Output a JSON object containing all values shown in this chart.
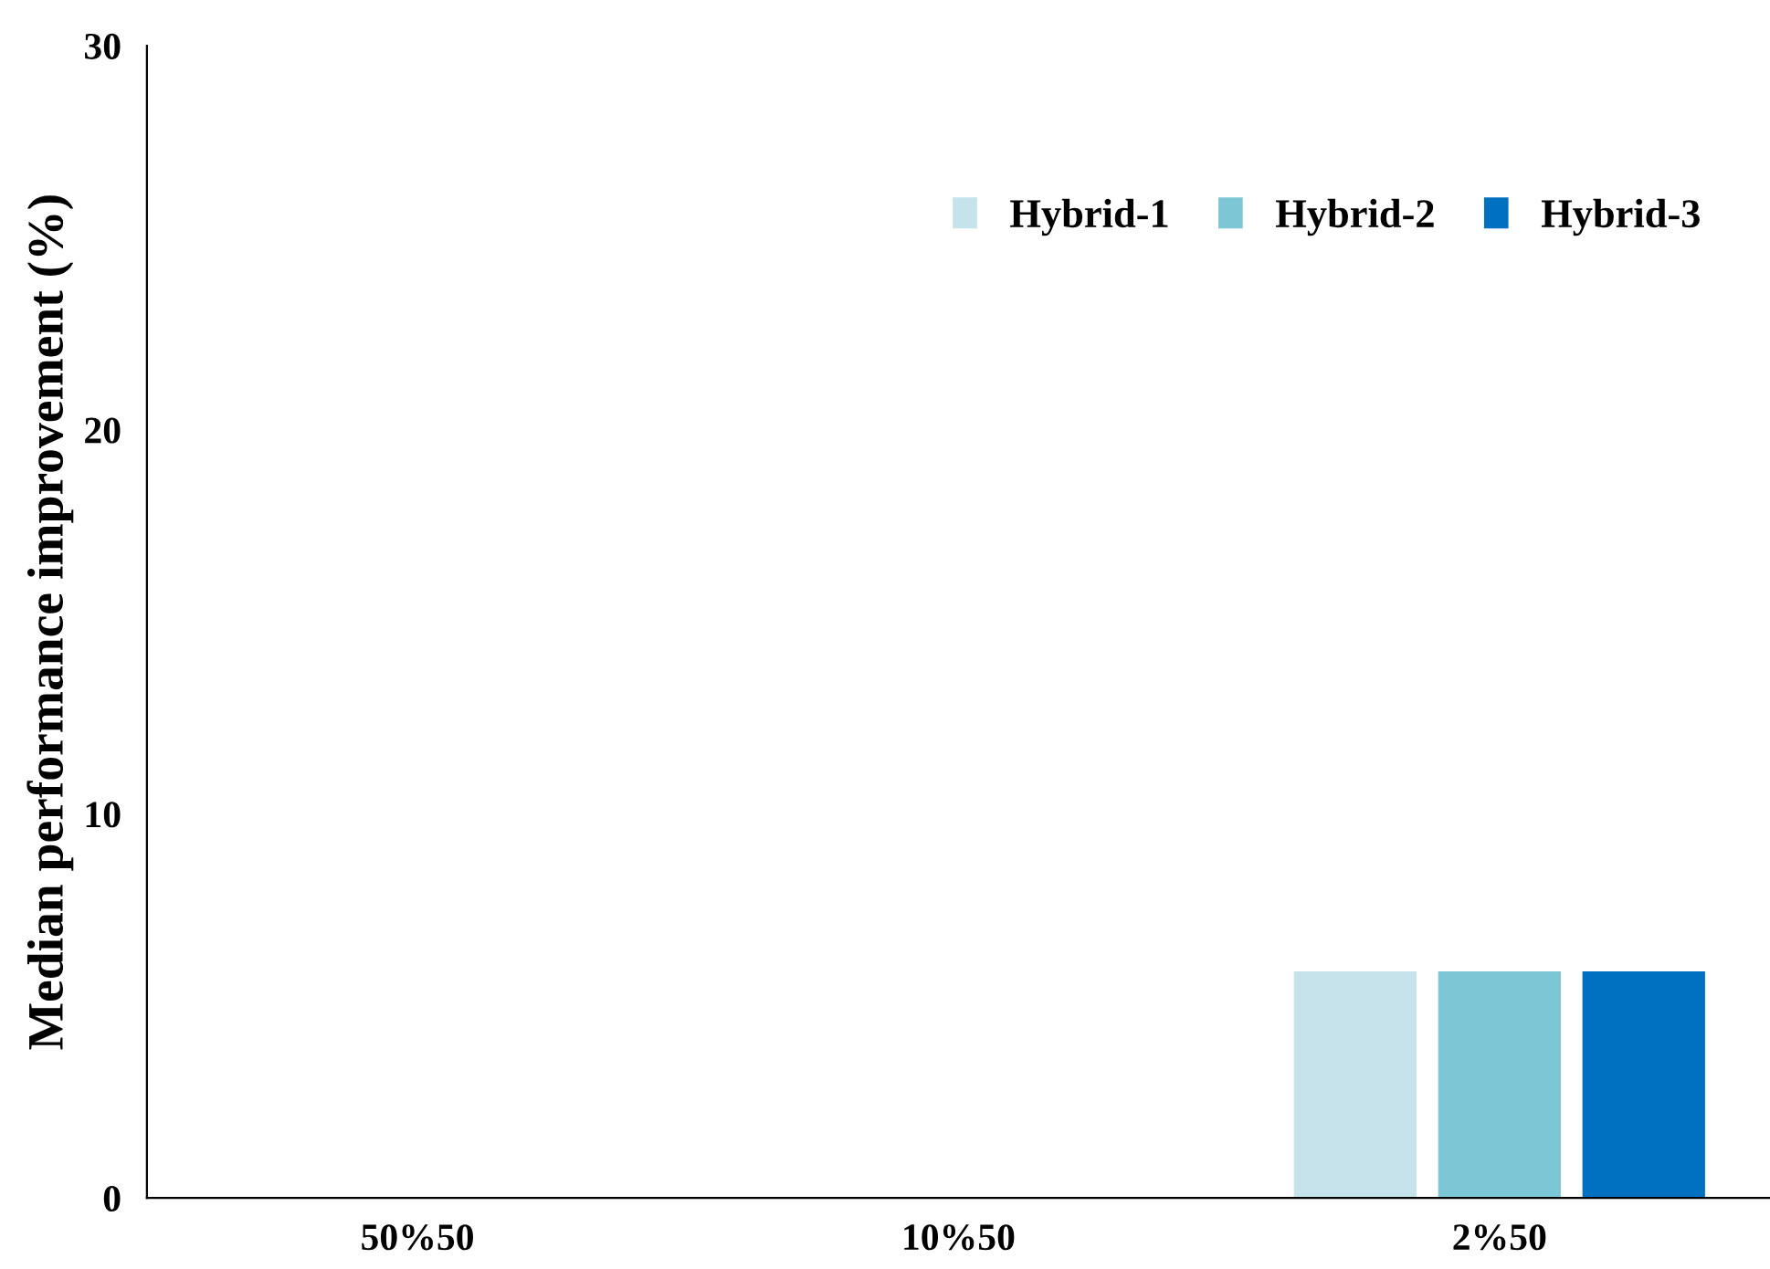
{
  "chart_data": {
    "type": "bar",
    "ylabel": "Median performance improvement (%)",
    "categories": [
      "50%50",
      "10%50",
      "2%50"
    ],
    "series": [
      {
        "name": "Hybrid-1",
        "color": "#c6e2ea",
        "values": [
          null,
          null,
          5.9
        ]
      },
      {
        "name": "Hybrid-2",
        "color": "#7cc6d6",
        "values": [
          null,
          null,
          5.9
        ]
      },
      {
        "name": "Hybrid-3",
        "color": "#0070c0",
        "values": [
          null,
          null,
          5.9
        ]
      }
    ],
    "ylim": [
      0,
      30
    ],
    "yticks": [
      0,
      10,
      20,
      30
    ],
    "grid": false,
    "legend": "top right"
  }
}
